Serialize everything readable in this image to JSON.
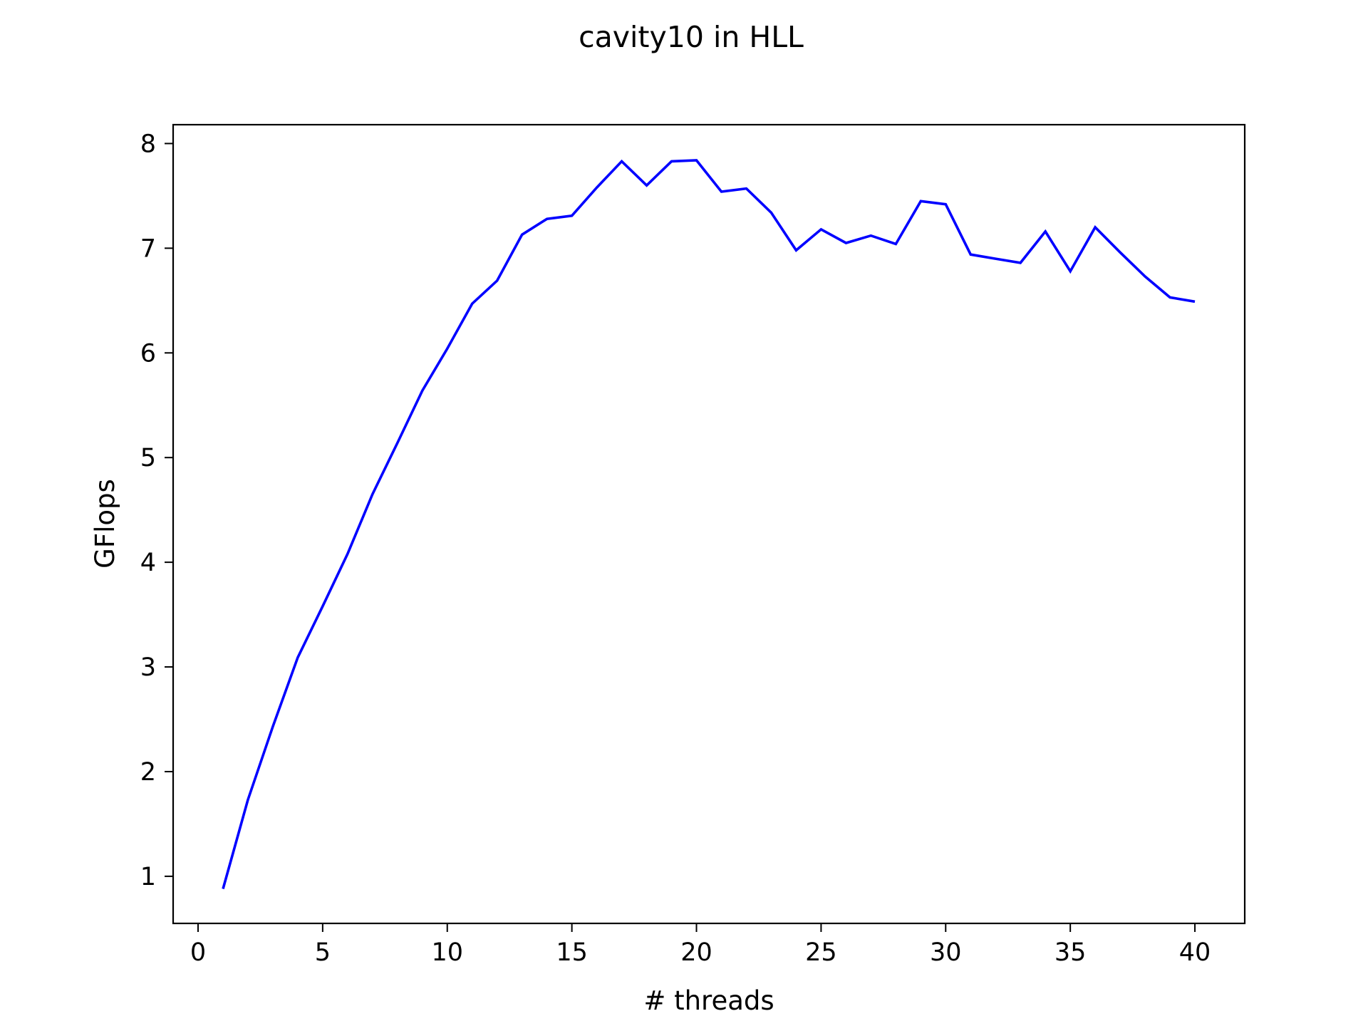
{
  "chart_data": {
    "type": "line",
    "title": "cavity10 in HLL",
    "xlabel": "# threads",
    "ylabel": "GFlops",
    "xlim": [
      -1,
      42
    ],
    "ylim": [
      0.55,
      8.18
    ],
    "xticks": [
      "0",
      "5",
      "10",
      "15",
      "20",
      "25",
      "30",
      "35",
      "40"
    ],
    "yticks": [
      "1",
      "2",
      "3",
      "4",
      "5",
      "6",
      "7",
      "8"
    ],
    "grid": false,
    "legend": "none",
    "series": [
      {
        "color": "#0000ff",
        "x": [
          1,
          2,
          3,
          4,
          5,
          6,
          7,
          8,
          9,
          10,
          11,
          12,
          13,
          14,
          15,
          16,
          17,
          18,
          19,
          20,
          21,
          22,
          23,
          24,
          25,
          26,
          27,
          28,
          29,
          30,
          31,
          32,
          33,
          34,
          35,
          36,
          37,
          38,
          39,
          40
        ],
        "y": [
          0.88,
          1.73,
          2.43,
          3.09,
          3.58,
          4.08,
          4.65,
          5.14,
          5.64,
          6.04,
          6.47,
          6.69,
          7.13,
          7.28,
          7.31,
          7.58,
          7.83,
          7.6,
          7.83,
          7.84,
          7.54,
          7.57,
          7.34,
          6.98,
          7.18,
          7.05,
          7.12,
          7.04,
          7.45,
          7.42,
          6.94,
          6.9,
          6.86,
          7.16,
          6.78,
          7.2,
          6.96,
          6.73,
          6.53,
          6.49
        ]
      }
    ]
  }
}
